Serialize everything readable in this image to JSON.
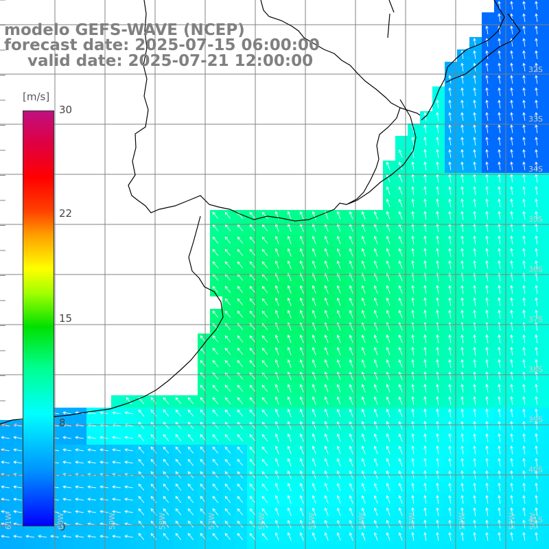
{
  "titles": {
    "line1": "modelo GEFS-WAVE (NCEP)",
    "line2": "forecast date: 2025-07-15 06:00:00",
    "line3": "valid date: 2025-07-21 12:00:00"
  },
  "colorbar": {
    "unit": "[m/s]",
    "ticks": [
      "30",
      "22",
      "15",
      "8",
      "0"
    ],
    "min": 0,
    "max": 30
  },
  "lat_labels": [
    "32S",
    "33S",
    "34S",
    "35S",
    "36S",
    "37S",
    "38S",
    "39S",
    "40S",
    "41S"
  ],
  "lon_labels": [
    "61W",
    "60W",
    "59W",
    "58W",
    "57W",
    "56W",
    "55W",
    "54W",
    "53W",
    "52W",
    "51W",
    "50W"
  ],
  "colors": {
    "land": "#ffffff",
    "grid": "#808080",
    "coast": "#000000",
    "arrow": "#ffffff"
  }
}
